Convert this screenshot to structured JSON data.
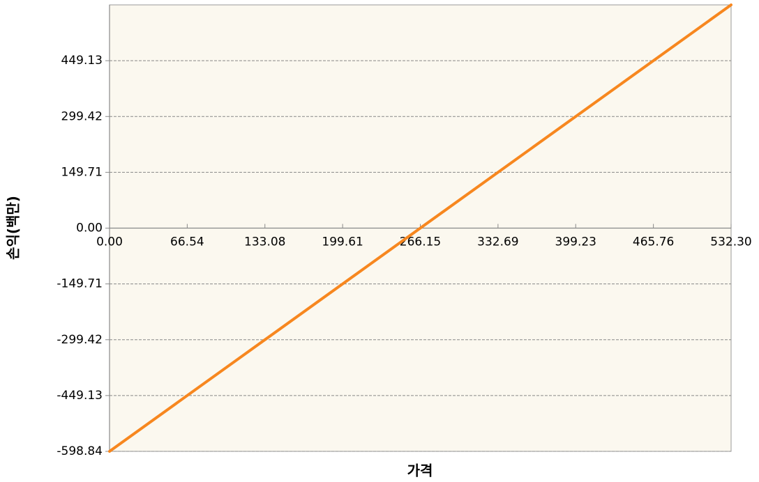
{
  "chart_data": {
    "type": "line",
    "x_label": "가격",
    "y_label": "손익(백만)",
    "x": [
      0,
      532.3
    ],
    "series": [
      {
        "name": "손익",
        "color": "#f7871f",
        "values": [
          -598.84,
          598.84
        ]
      }
    ],
    "xlim": [
      0,
      532.3
    ],
    "xticks": [
      {
        "value": 0,
        "label": "0.00"
      },
      66.54,
      133.08,
      199.61,
      266.15,
      332.69,
      399.23,
      465.76,
      {
        "value": 532.3,
        "label": "532.30"
      }
    ],
    "ylim": [
      -598.84,
      598.84
    ],
    "yticks": [
      -598.84,
      -449.13,
      -299.42,
      -149.71,
      {
        "value": 0,
        "label": "0.00"
      },
      149.71,
      299.42,
      449.13
    ],
    "grid": true,
    "background": "#fbf8ef"
  }
}
